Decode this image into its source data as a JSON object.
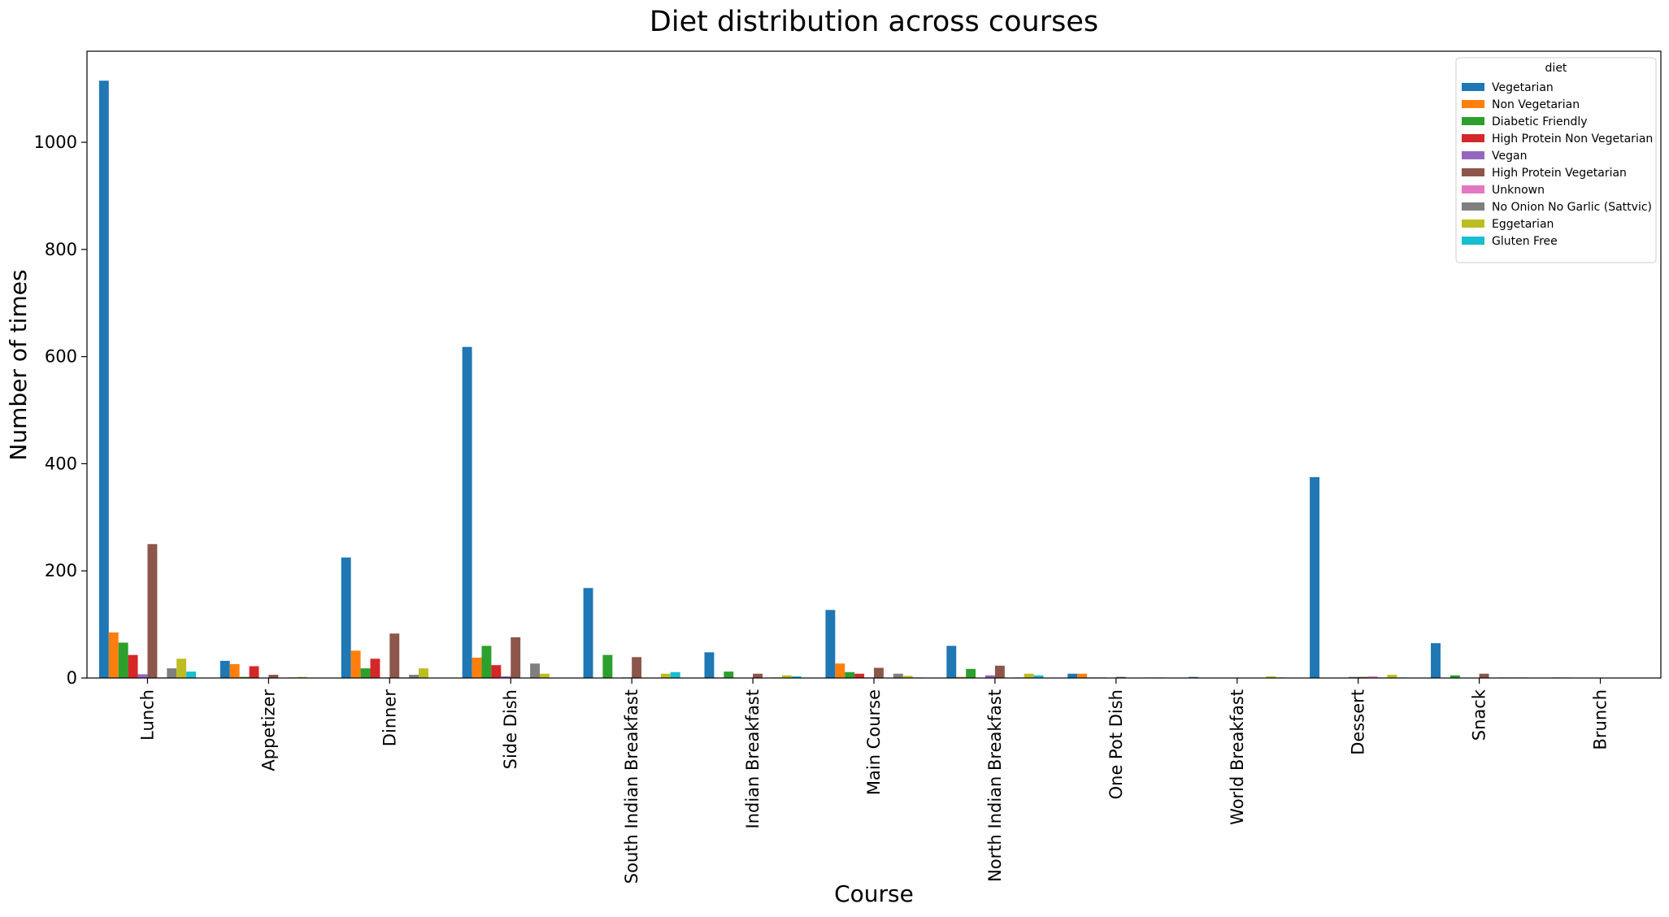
{
  "chart_data": {
    "type": "bar",
    "title": "Diet distribution across courses",
    "xlabel": "Course",
    "ylabel": "Number of times",
    "ylim": [
      0,
      1170
    ],
    "yticks": [
      0,
      200,
      400,
      600,
      800,
      1000
    ],
    "grid": false,
    "legend": {
      "title": "diet",
      "placement": "top-right"
    },
    "categories": [
      "Lunch",
      "Appetizer",
      "Dinner",
      "Side Dish",
      "South Indian Breakfast",
      "Indian Breakfast",
      "Main Course",
      "North Indian Breakfast",
      "One Pot Dish",
      "World Breakfast",
      "Dessert",
      "Snack",
      "Brunch"
    ],
    "series": [
      {
        "name": "Vegetarian",
        "color": "#1f77b4",
        "values": [
          1115,
          32,
          225,
          618,
          168,
          48,
          127,
          60,
          8,
          2,
          375,
          65,
          1
        ]
      },
      {
        "name": "Non Vegetarian",
        "color": "#ff7f0e",
        "values": [
          85,
          26,
          51,
          38,
          0,
          1,
          27,
          2,
          8,
          0,
          0,
          0,
          1
        ]
      },
      {
        "name": "Diabetic Friendly",
        "color": "#2ca02c",
        "values": [
          66,
          2,
          18,
          60,
          43,
          12,
          11,
          17,
          1,
          0,
          0,
          5,
          0
        ]
      },
      {
        "name": "High Protein Non Vegetarian",
        "color": "#d62728",
        "values": [
          43,
          22,
          36,
          24,
          0,
          0,
          8,
          0,
          1,
          0,
          0,
          0,
          0
        ]
      },
      {
        "name": "Vegan",
        "color": "#9467bd",
        "values": [
          7,
          0,
          1,
          3,
          1,
          0,
          1,
          5,
          0,
          0,
          2,
          0,
          0
        ]
      },
      {
        "name": "High Protein Vegetarian",
        "color": "#8c564b",
        "values": [
          250,
          6,
          83,
          76,
          39,
          8,
          19,
          23,
          2,
          0,
          2,
          8,
          0
        ]
      },
      {
        "name": "Unknown",
        "color": "#e377c2",
        "values": [
          1,
          0,
          1,
          0,
          0,
          0,
          0,
          0,
          0,
          0,
          3,
          0,
          0
        ]
      },
      {
        "name": "No Onion No Garlic (Sattvic)",
        "color": "#7f7f7f",
        "values": [
          18,
          1,
          6,
          27,
          0,
          1,
          8,
          1,
          0,
          0,
          1,
          1,
          0
        ]
      },
      {
        "name": "Eggetarian",
        "color": "#bcbd22",
        "values": [
          36,
          2,
          18,
          8,
          8,
          5,
          4,
          8,
          1,
          3,
          6,
          1,
          0
        ]
      },
      {
        "name": "Gluten Free",
        "color": "#17becf",
        "values": [
          12,
          0,
          0,
          0,
          11,
          3,
          1,
          5,
          1,
          1,
          1,
          1,
          0
        ]
      }
    ]
  }
}
